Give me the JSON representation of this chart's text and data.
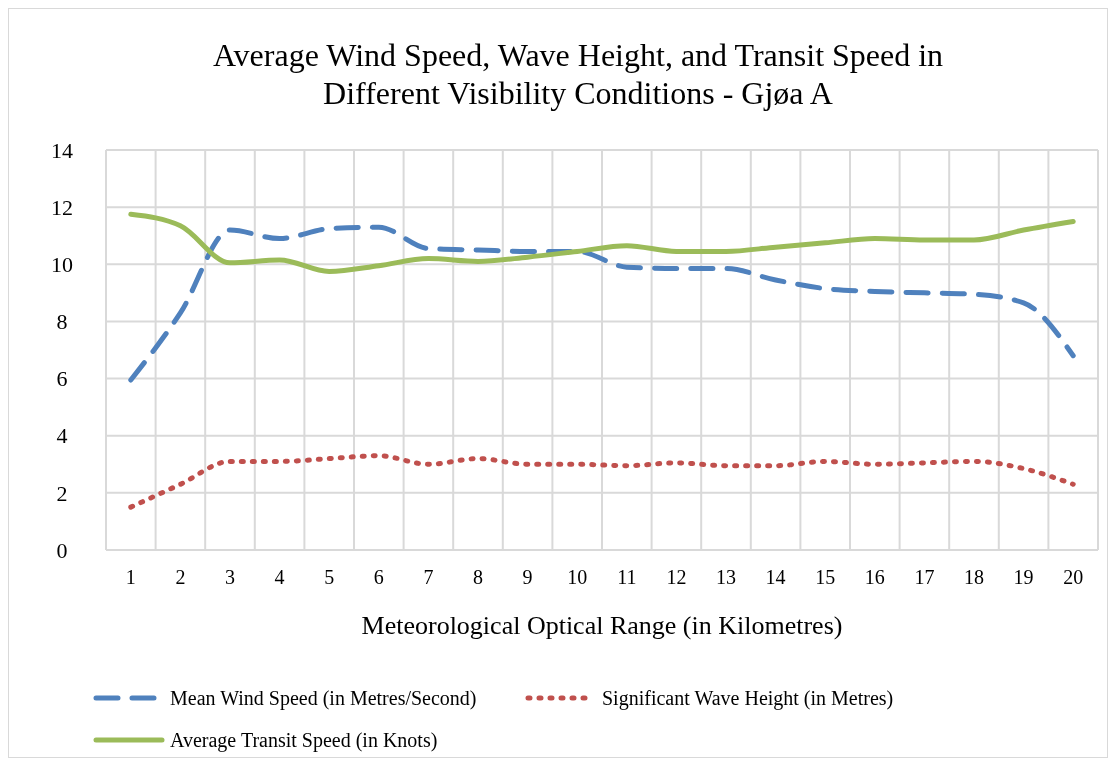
{
  "chart_data": {
    "type": "line",
    "title": "Average Wind Speed, Wave Height, and Transit Speed in Different Visibility Conditions - Gjøa A",
    "xlabel": "Meteorological Optical Range (in Kilometres)",
    "categories": [
      "1",
      "2",
      "3",
      "4",
      "5",
      "6",
      "7",
      "8",
      "9",
      "10",
      "11",
      "12",
      "13",
      "14",
      "15",
      "16",
      "17",
      "18",
      "19",
      "20"
    ],
    "ylim": [
      0,
      14
    ],
    "yticks": [
      0,
      2,
      4,
      6,
      8,
      10,
      12,
      14
    ],
    "grid": true,
    "legend": "bottom",
    "marker": "none",
    "series": [
      {
        "name": "Mean Wind Speed (in Metres/Second)",
        "color": "#4f81bd",
        "line_style": "dashed",
        "values": [
          5.95,
          8.3,
          11.2,
          10.9,
          11.25,
          11.3,
          10.55,
          10.5,
          10.45,
          10.45,
          9.9,
          9.85,
          9.85,
          9.45,
          9.15,
          9.05,
          9.0,
          8.95,
          8.65,
          6.8
        ]
      },
      {
        "name": "Significant Wave Height (in Metres)",
        "color": "#c0504d",
        "line_style": "dotted",
        "values": [
          1.5,
          2.3,
          3.1,
          3.1,
          3.2,
          3.3,
          3.0,
          3.2,
          3.0,
          3.0,
          2.95,
          3.05,
          2.95,
          2.95,
          3.1,
          3.0,
          3.05,
          3.1,
          2.85,
          2.3
        ]
      },
      {
        "name": "Average Transit Speed (in Knots)",
        "color": "#9bbb59",
        "line_style": "solid",
        "values": [
          11.75,
          11.35,
          10.05,
          10.15,
          9.75,
          9.95,
          10.2,
          10.1,
          10.25,
          10.45,
          10.65,
          10.45,
          10.45,
          10.6,
          10.75,
          10.9,
          10.85,
          10.85,
          11.2,
          11.5
        ]
      }
    ]
  }
}
